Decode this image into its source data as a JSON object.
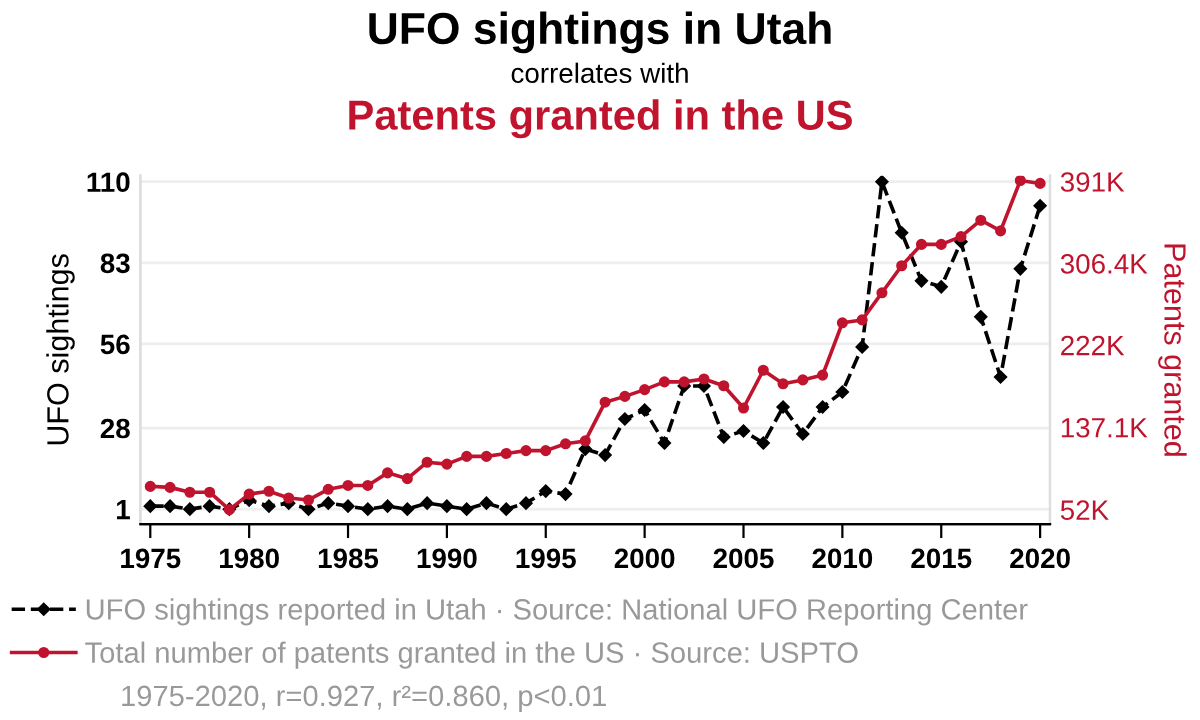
{
  "chart_data": {
    "type": "line",
    "title": "UFO sightings in Utah",
    "subtitle": "correlates with",
    "annotations": [
      "Patents granted in the US",
      "1975-2020, r=0.927, r²=0.860, p<0.01"
    ],
    "ylabel": "UFO sightings",
    "y2label": "Patents granted",
    "x": [
      1975,
      1976,
      1977,
      1978,
      1979,
      1980,
      1981,
      1982,
      1983,
      1984,
      1985,
      1986,
      1987,
      1988,
      1989,
      1990,
      1991,
      1992,
      1993,
      1994,
      1995,
      1996,
      1997,
      1998,
      1999,
      2000,
      2001,
      2002,
      2003,
      2004,
      2005,
      2006,
      2007,
      2008,
      2009,
      2010,
      2011,
      2012,
      2013,
      2014,
      2015,
      2016,
      2017,
      2018,
      2019,
      2020
    ],
    "series": [
      {
        "name": "UFO sightings reported in Utah · Source: National UFO Reporting Center",
        "color": "#000000",
        "marker": "diamond",
        "line_style": "dashed",
        "values": [
          2,
          2,
          1,
          2,
          1,
          4,
          2,
          3,
          1,
          3,
          2,
          1,
          2,
          1,
          3,
          2,
          1,
          3,
          1,
          3,
          7,
          6,
          21,
          19,
          31,
          34,
          23,
          42,
          42,
          25,
          27,
          23,
          35,
          26,
          35,
          40,
          55,
          110,
          93,
          77,
          75,
          90,
          65,
          45,
          81,
          102
        ]
      },
      {
        "name": "Total number of patents granted in the US · Source: USPTO",
        "color": "#c0142e",
        "marker": "circle",
        "line_style": "solid",
        "axis": "y2",
        "values": [
          76,
          75,
          70,
          70,
          52,
          68,
          71,
          64,
          62,
          73,
          77,
          77,
          90,
          84,
          101,
          99,
          107,
          107,
          110,
          113,
          113,
          120,
          123,
          163,
          169,
          176,
          184,
          184,
          187,
          180,
          157,
          196,
          182,
          186,
          191,
          245,
          248,
          276,
          304,
          326,
          326,
          334,
          351,
          340,
          392,
          389
        ]
      }
    ],
    "xlim": [
      1974.5,
      2020.5
    ],
    "xticks": [
      1975,
      1980,
      1985,
      1990,
      1995,
      2000,
      2005,
      2010,
      2015,
      2020
    ],
    "ylim": [
      -4,
      112
    ],
    "yticks": [
      1,
      28,
      56,
      83,
      110
    ],
    "y2lim": [
      37,
      397
    ],
    "y2ticks": [
      {
        "value": 52,
        "label": "52K"
      },
      {
        "value": 137.1,
        "label": "137.1K"
      },
      {
        "value": 222,
        "label": "222K"
      },
      {
        "value": 306.4,
        "label": "306.4K"
      },
      {
        "value": 391,
        "label": "391K"
      }
    ],
    "grid": "y",
    "legend": "bottom"
  }
}
